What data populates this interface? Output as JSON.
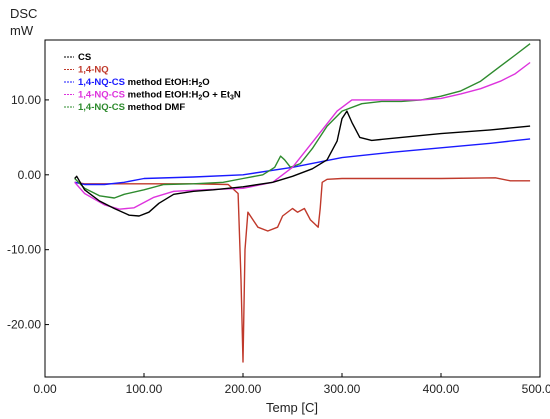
{
  "chart_data": {
    "type": "line",
    "ylabel_line1": "DSC",
    "ylabel_line2": "mW",
    "xlabel": "Temp [C]",
    "xlim": [
      0,
      500
    ],
    "ylim": [
      -27,
      18
    ],
    "x_ticks": [
      "0.00",
      "100.00",
      "200.00",
      "300.00",
      "400.00",
      "500.00"
    ],
    "y_ticks": [
      "-20.00",
      "-10.00",
      "0.00",
      "10.00"
    ],
    "grid": false,
    "legend_position": "top-left",
    "series": [
      {
        "name": "CS",
        "color": "#000000",
        "x": [
          30,
          32,
          40,
          55,
          70,
          85,
          95,
          105,
          115,
          130,
          150,
          170,
          200,
          230,
          250,
          270,
          285,
          295,
          300,
          305,
          310,
          318,
          330,
          360,
          400,
          450,
          490
        ],
        "y": [
          -0.5,
          -0.2,
          -2.0,
          -3.5,
          -4.5,
          -5.4,
          -5.5,
          -5.0,
          -3.8,
          -2.6,
          -2.2,
          -2.0,
          -1.6,
          -1.0,
          -0.2,
          0.8,
          2.0,
          4.5,
          7.5,
          8.5,
          7.0,
          5.0,
          4.6,
          5.0,
          5.5,
          6.0,
          6.5
        ]
      },
      {
        "name": "1,4-NQ",
        "color": "#c0392b",
        "x": [
          30,
          40,
          60,
          100,
          150,
          185,
          195,
          198,
          200,
          202,
          205,
          215,
          225,
          235,
          240,
          250,
          255,
          262,
          268,
          272,
          276,
          278,
          280,
          285,
          300,
          350,
          400,
          455,
          470,
          490
        ],
        "y": [
          -1.0,
          -1.2,
          -1.2,
          -1.2,
          -1.2,
          -1.3,
          -2.5,
          -14.0,
          -25.0,
          -10.0,
          -5.0,
          -7.0,
          -7.5,
          -7.0,
          -5.5,
          -4.5,
          -5.0,
          -4.5,
          -6.0,
          -6.5,
          -7.0,
          -4.5,
          -1.0,
          -0.6,
          -0.5,
          -0.5,
          -0.5,
          -0.4,
          -0.8,
          -0.8
        ]
      },
      {
        "name": "1,4-NQ-CS method EtOH:H2O",
        "color": "#1a1aff",
        "x": [
          30,
          40,
          60,
          80,
          100,
          150,
          200,
          250,
          300,
          350,
          400,
          450,
          490
        ],
        "y": [
          -1.0,
          -1.3,
          -1.3,
          -1.0,
          -0.5,
          -0.3,
          0.0,
          1.0,
          2.3,
          3.0,
          3.6,
          4.2,
          4.8
        ]
      },
      {
        "name": "1,4-NQ-CS method EtOH:H2O + Et3N",
        "color": "#dd33dd",
        "x": [
          30,
          40,
          60,
          75,
          90,
          110,
          130,
          160,
          200,
          230,
          250,
          265,
          280,
          295,
          310,
          330,
          350,
          380,
          400,
          420,
          440,
          460,
          475,
          490
        ],
        "y": [
          -1.0,
          -2.5,
          -4.0,
          -4.6,
          -4.4,
          -3.0,
          -2.2,
          -2.0,
          -1.8,
          -1.0,
          1.0,
          3.5,
          6.0,
          8.5,
          10.0,
          10.0,
          10.0,
          10.0,
          10.2,
          10.8,
          11.5,
          12.5,
          13.5,
          15.0
        ]
      },
      {
        "name": "1,4-NQ-CS method DMF",
        "color": "#2e8b2e",
        "x": [
          30,
          40,
          55,
          70,
          80,
          100,
          120,
          150,
          180,
          200,
          220,
          232,
          238,
          242,
          248,
          258,
          270,
          285,
          300,
          320,
          340,
          360,
          380,
          400,
          420,
          440,
          460,
          475,
          490
        ],
        "y": [
          -0.5,
          -1.8,
          -2.8,
          -3.1,
          -2.6,
          -2.0,
          -1.3,
          -1.2,
          -1.0,
          -0.5,
          0.0,
          1.0,
          2.5,
          2.0,
          1.0,
          1.5,
          3.5,
          6.5,
          8.5,
          9.5,
          9.8,
          9.8,
          10.0,
          10.5,
          11.2,
          12.5,
          14.5,
          16.0,
          17.5
        ]
      }
    ]
  }
}
